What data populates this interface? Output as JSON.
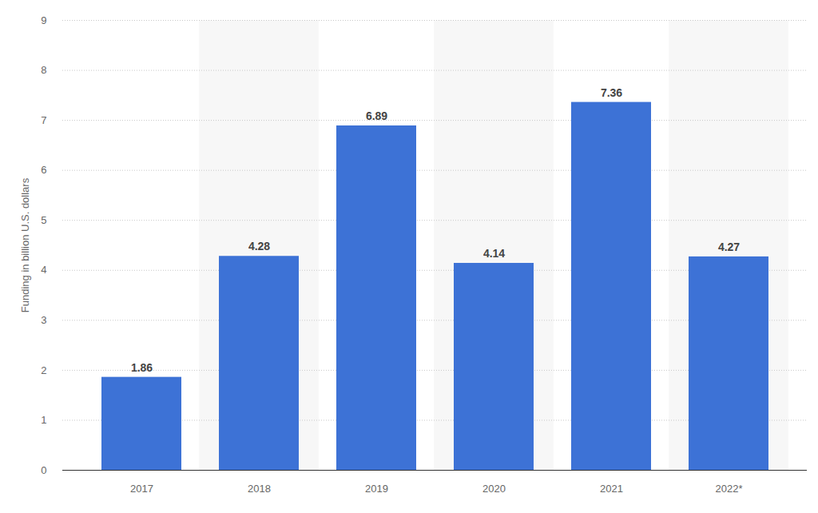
{
  "chart_data": {
    "type": "bar",
    "y_label": "Funding in billion U.S. dollars",
    "categories": [
      "2017",
      "2018",
      "2019",
      "2020",
      "2021",
      "2022*"
    ],
    "values": [
      1.86,
      4.28,
      6.89,
      4.14,
      7.36,
      4.27
    ],
    "color": "#3d72d6",
    "ylim": [
      0,
      9
    ],
    "yticks": [
      0,
      1,
      2,
      3,
      4,
      5,
      6,
      7,
      8,
      9
    ],
    "grid": true,
    "data_labels": true
  }
}
